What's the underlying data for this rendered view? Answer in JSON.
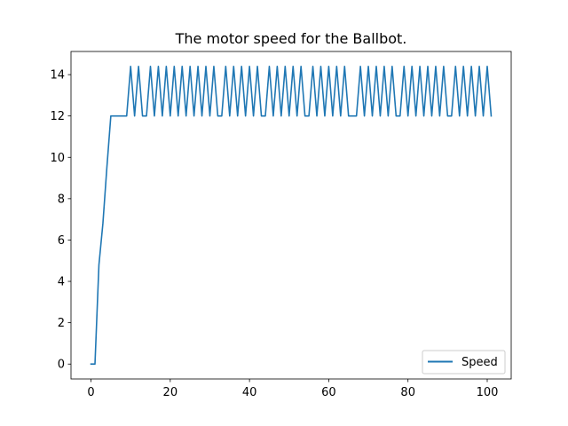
{
  "chart_data": {
    "type": "line",
    "title": "The motor speed for the Ballbot.",
    "xlabel": "",
    "ylabel": "",
    "xlim": [
      -5.05,
      106.05
    ],
    "ylim": [
      -0.72,
      15.12
    ],
    "x_ticks": [
      0,
      20,
      40,
      60,
      80,
      100
    ],
    "y_ticks": [
      0,
      2,
      4,
      6,
      8,
      10,
      12,
      14
    ],
    "grid": false,
    "legend_position": "lower right",
    "series": [
      {
        "name": "Speed",
        "color": "#1f77b4",
        "x": [
          0,
          1,
          2,
          3,
          4,
          5,
          6,
          7,
          8,
          9,
          10,
          11,
          12,
          13,
          14,
          15,
          16,
          17,
          18,
          19,
          20,
          21,
          22,
          23,
          24,
          25,
          26,
          27,
          28,
          29,
          30,
          31,
          32,
          33,
          34,
          35,
          36,
          37,
          38,
          39,
          40,
          41,
          42,
          43,
          44,
          45,
          46,
          47,
          48,
          49,
          50,
          51,
          52,
          53,
          54,
          55,
          56,
          57,
          58,
          59,
          60,
          61,
          62,
          63,
          64,
          65,
          66,
          67,
          68,
          69,
          70,
          71,
          72,
          73,
          74,
          75,
          76,
          77,
          78,
          79,
          80,
          81,
          82,
          83,
          84,
          85,
          86,
          87,
          88,
          89,
          90,
          91,
          92,
          93,
          94,
          95,
          96,
          97,
          98,
          99,
          100,
          101
        ],
        "y": [
          0,
          0,
          4.8,
          6.8,
          9.5,
          12,
          12,
          12,
          12,
          12,
          14.4,
          12,
          14.4,
          12,
          12,
          14.4,
          12,
          14.4,
          12,
          14.4,
          12,
          14.4,
          12,
          14.4,
          12,
          14.4,
          12,
          14.4,
          12,
          14.4,
          12,
          14.4,
          12,
          12,
          14.4,
          12,
          14.4,
          12,
          14.4,
          12,
          14.4,
          12,
          14.4,
          12,
          12,
          14.4,
          12,
          14.4,
          12,
          14.4,
          12,
          14.4,
          12,
          14.4,
          12,
          12,
          14.4,
          12,
          14.4,
          12,
          14.4,
          12,
          14.4,
          12,
          14.4,
          12,
          12,
          12,
          14.4,
          12,
          14.4,
          12,
          14.4,
          12,
          14.4,
          12,
          14.4,
          12,
          12,
          14.4,
          12,
          14.4,
          12,
          14.4,
          12,
          14.4,
          12,
          14.4,
          12,
          14.4,
          12,
          12,
          14.4,
          12,
          14.4,
          12,
          14.4,
          12,
          14.4,
          12,
          14.4,
          12
        ]
      }
    ]
  }
}
